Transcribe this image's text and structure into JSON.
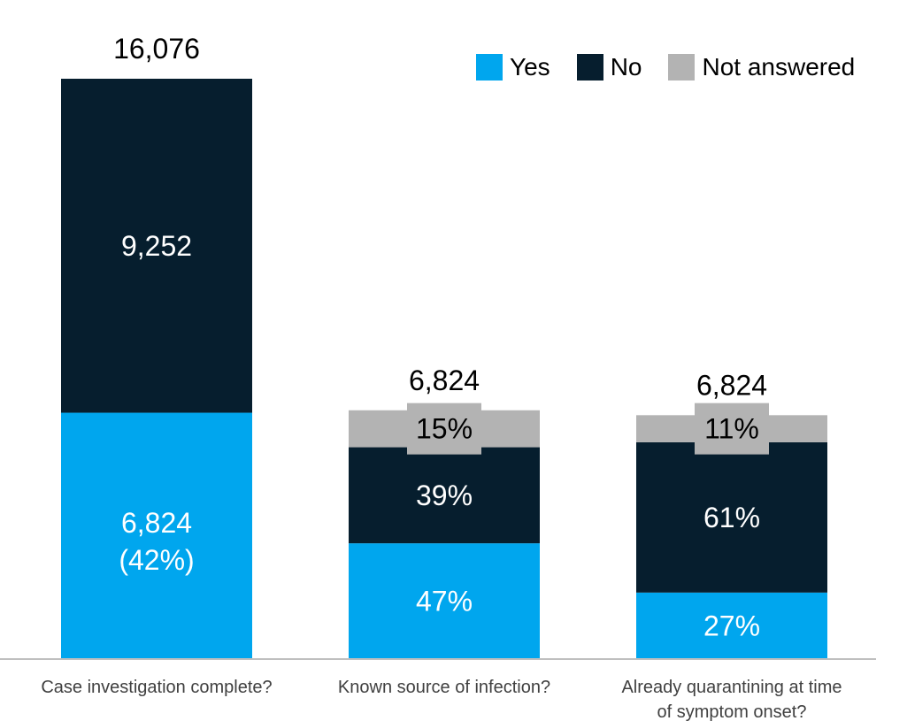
{
  "chart_data": {
    "type": "bar",
    "stacked": true,
    "categories": [
      "Case investigation complete?",
      "Known source of infection?",
      "Already quarantining at time of symptom onset?"
    ],
    "category_label_lines": [
      [
        "Case investigation complete?"
      ],
      [
        "Known source of infection?"
      ],
      [
        "Already quarantining at time",
        "of symptom onset?"
      ]
    ],
    "totals": [
      "16,076",
      "6,824",
      "6,824"
    ],
    "series": [
      {
        "name": "Yes",
        "color": "#00a6ee",
        "values": [
          6824,
          3207,
          1842
        ],
        "labels": [
          [
            "6,824",
            "(42%)"
          ],
          [
            "47%"
          ],
          [
            "27%"
          ]
        ]
      },
      {
        "name": "No",
        "color": "#061e2e",
        "values": [
          9252,
          2661,
          4163
        ],
        "labels": [
          [
            "9,252"
          ],
          [
            "39%"
          ],
          [
            "61%"
          ]
        ]
      },
      {
        "name": "Not answered",
        "color": "#b3b3b3",
        "values": [
          0,
          1024,
          751
        ],
        "labels": [
          [],
          [
            "15%"
          ],
          [
            "11%"
          ]
        ]
      }
    ],
    "ylim": [
      0,
      16076
    ],
    "grid": false,
    "legend_position": "top-right",
    "axis_color": "#bfbfbf"
  }
}
